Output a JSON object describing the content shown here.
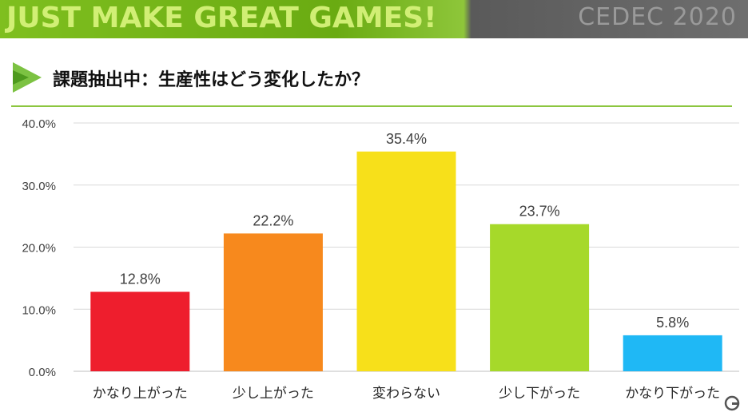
{
  "banner": {
    "slogan": "JUST MAKE GREAT GAMES!",
    "logo_text": "CEDEC 2020"
  },
  "slide": {
    "title": "課題抽出中：生産性はどう変化したか？"
  },
  "chart_data": {
    "type": "bar",
    "categories": [
      "かなり上がった",
      "少し上がった",
      "変わらない",
      "少し下がった",
      "かなり下がった"
    ],
    "values": [
      12.8,
      22.2,
      35.4,
      23.7,
      5.8
    ],
    "value_labels": [
      "12.8%",
      "22.2%",
      "35.4%",
      "23.7%",
      "5.8%"
    ],
    "bar_colors": [
      "#ee1e2d",
      "#f7891d",
      "#f7e01a",
      "#a6d92a",
      "#1fb8f5"
    ],
    "ylim": [
      0,
      40
    ],
    "yticks": [
      "0.0%",
      "10.0%",
      "20.0%",
      "30.0%",
      "40.0%"
    ],
    "grid": true,
    "title": "",
    "xlabel": "",
    "ylabel": ""
  },
  "icons": {
    "title_arrow": "green-triangle-arrow-icon",
    "corner": "watermark-logo-icon"
  }
}
